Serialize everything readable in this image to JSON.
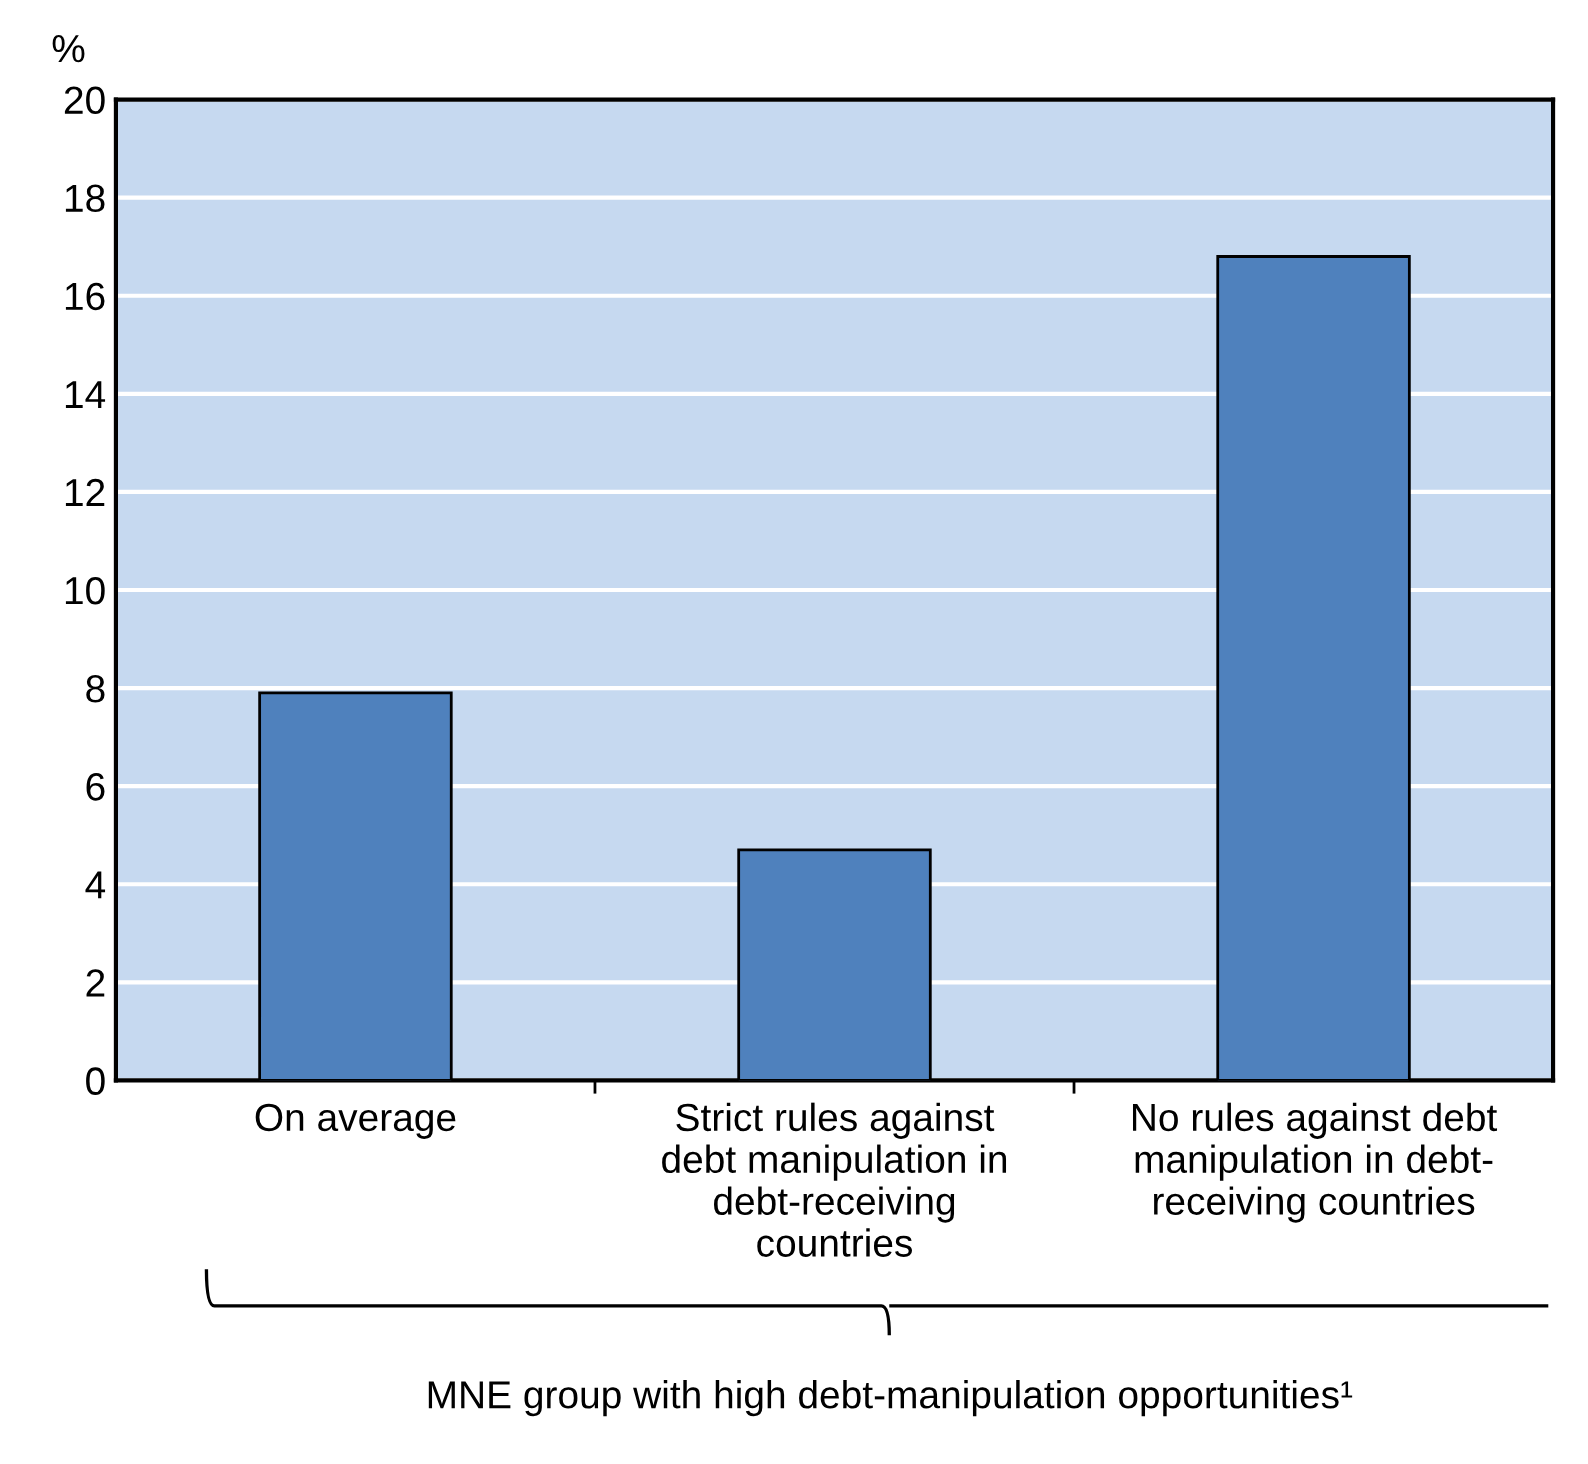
{
  "chart_data": {
    "type": "bar",
    "ylabel": "%",
    "xlabel": "MNE group with high debt-manipulation opportunities¹",
    "categories": [
      "On average",
      "Strict rules against\ndebt manipulation in\ndebt-receiving\ncountries",
      "No rules against debt\nmanipulation in debt-\nreceiving countries"
    ],
    "values": [
      7.9,
      4.7,
      16.8
    ],
    "color": "#4f81bd",
    "ylim": [
      0,
      20
    ],
    "yticks": [
      0,
      2,
      4,
      6,
      8,
      10,
      12,
      14,
      16,
      18,
      20
    ],
    "grid": "y"
  }
}
